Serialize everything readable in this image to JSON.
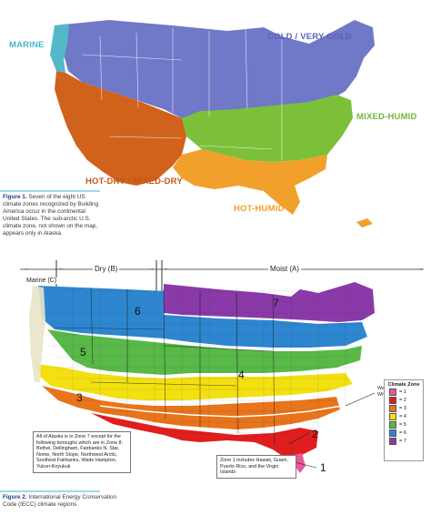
{
  "figure1": {
    "zones": {
      "marine": "MARINE",
      "cold": "COLD / VERY COLD",
      "mixed_humid": "MIXED-HUMID",
      "hot_dry": "HOT-DRY / MIXED-DRY",
      "hot_humid": "HOT-HUMID"
    },
    "caption_label": "Figure 1.",
    "caption_text": "Seven of the eight US climate zones recognized by Building America occur in the continental United States. The sub-arctic U.S. climate zone, not shown on the map, appears only in Alaska."
  },
  "figure2": {
    "header": {
      "dry": "Dry (B)",
      "moist": "Moist (A)",
      "marine": "Marine (C)"
    },
    "legend": {
      "title": "Climate Zone",
      "items": [
        {
          "label": "= 1",
          "color": "#e8579a"
        },
        {
          "label": "= 2",
          "color": "#e01e1e"
        },
        {
          "label": "= 3",
          "color": "#e8741c"
        },
        {
          "label": "= 4",
          "color": "#f2e010"
        },
        {
          "label": "= 5",
          "color": "#58b848"
        },
        {
          "label": "= 6",
          "color": "#2e86d0"
        },
        {
          "label": "= 7",
          "color": "#8a3aa8"
        }
      ]
    },
    "zone_numbers": [
      "1",
      "2",
      "3",
      "4",
      "5",
      "6",
      "7"
    ],
    "warm_humid": "Warm-Humid Below White Line",
    "alaska_note": "All of Alaska is in Zone 7 except for the following boroughs which are in Zone 8: Bethel, Dellingham, Fairbanks N. Star, Nome, North Slope, Northwest Arctic, Southest Fairbanks, Wade Hampton, Yukon-Koyukuk",
    "zone1_note": "Zone 1 includes Hawaii, Guam, Puerto Rico, and the Virgin Islands",
    "caption_label": "Figure 2.",
    "caption_text": "International Energy Conservation Code (IECC) climate regions"
  }
}
